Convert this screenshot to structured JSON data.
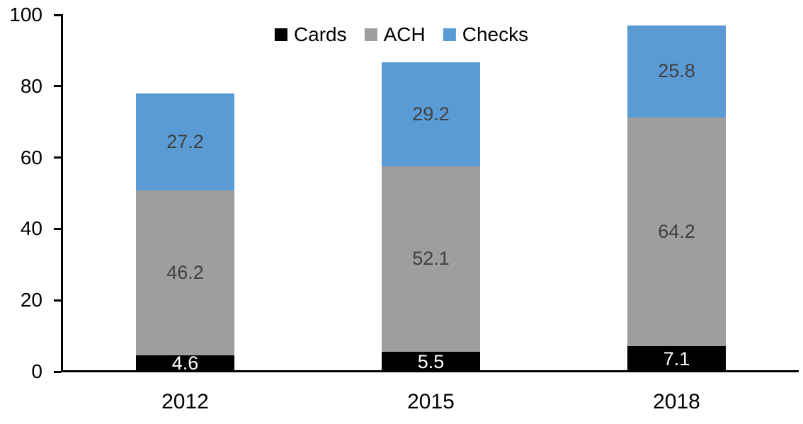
{
  "chart_data": {
    "type": "bar",
    "stacked": true,
    "title": "",
    "categories": [
      "2012",
      "2015",
      "2018"
    ],
    "series": [
      {
        "name": "Cards",
        "color": "#000000",
        "label_color": "#ffffff",
        "values": [
          4.6,
          5.5,
          7.1
        ]
      },
      {
        "name": "ACH",
        "color": "#9e9e9e",
        "label_color": "#404040",
        "values": [
          46.2,
          52.1,
          64.2
        ]
      },
      {
        "name": "Checks",
        "color": "#5b9bd5",
        "label_color": "#404040",
        "values": [
          27.2,
          29.2,
          25.8
        ]
      }
    ],
    "totals": [
      78.0,
      86.8,
      97.1
    ],
    "y_axis": {
      "ticks": [
        0,
        20,
        40,
        60,
        80,
        100
      ],
      "lim": [
        0,
        100
      ]
    },
    "x_axis": {
      "tick_labels": [
        "2012",
        "2015",
        "2018"
      ]
    },
    "legend_position": "top-center",
    "grid": false,
    "axis_color": "#000000",
    "background": "#ffffff"
  }
}
